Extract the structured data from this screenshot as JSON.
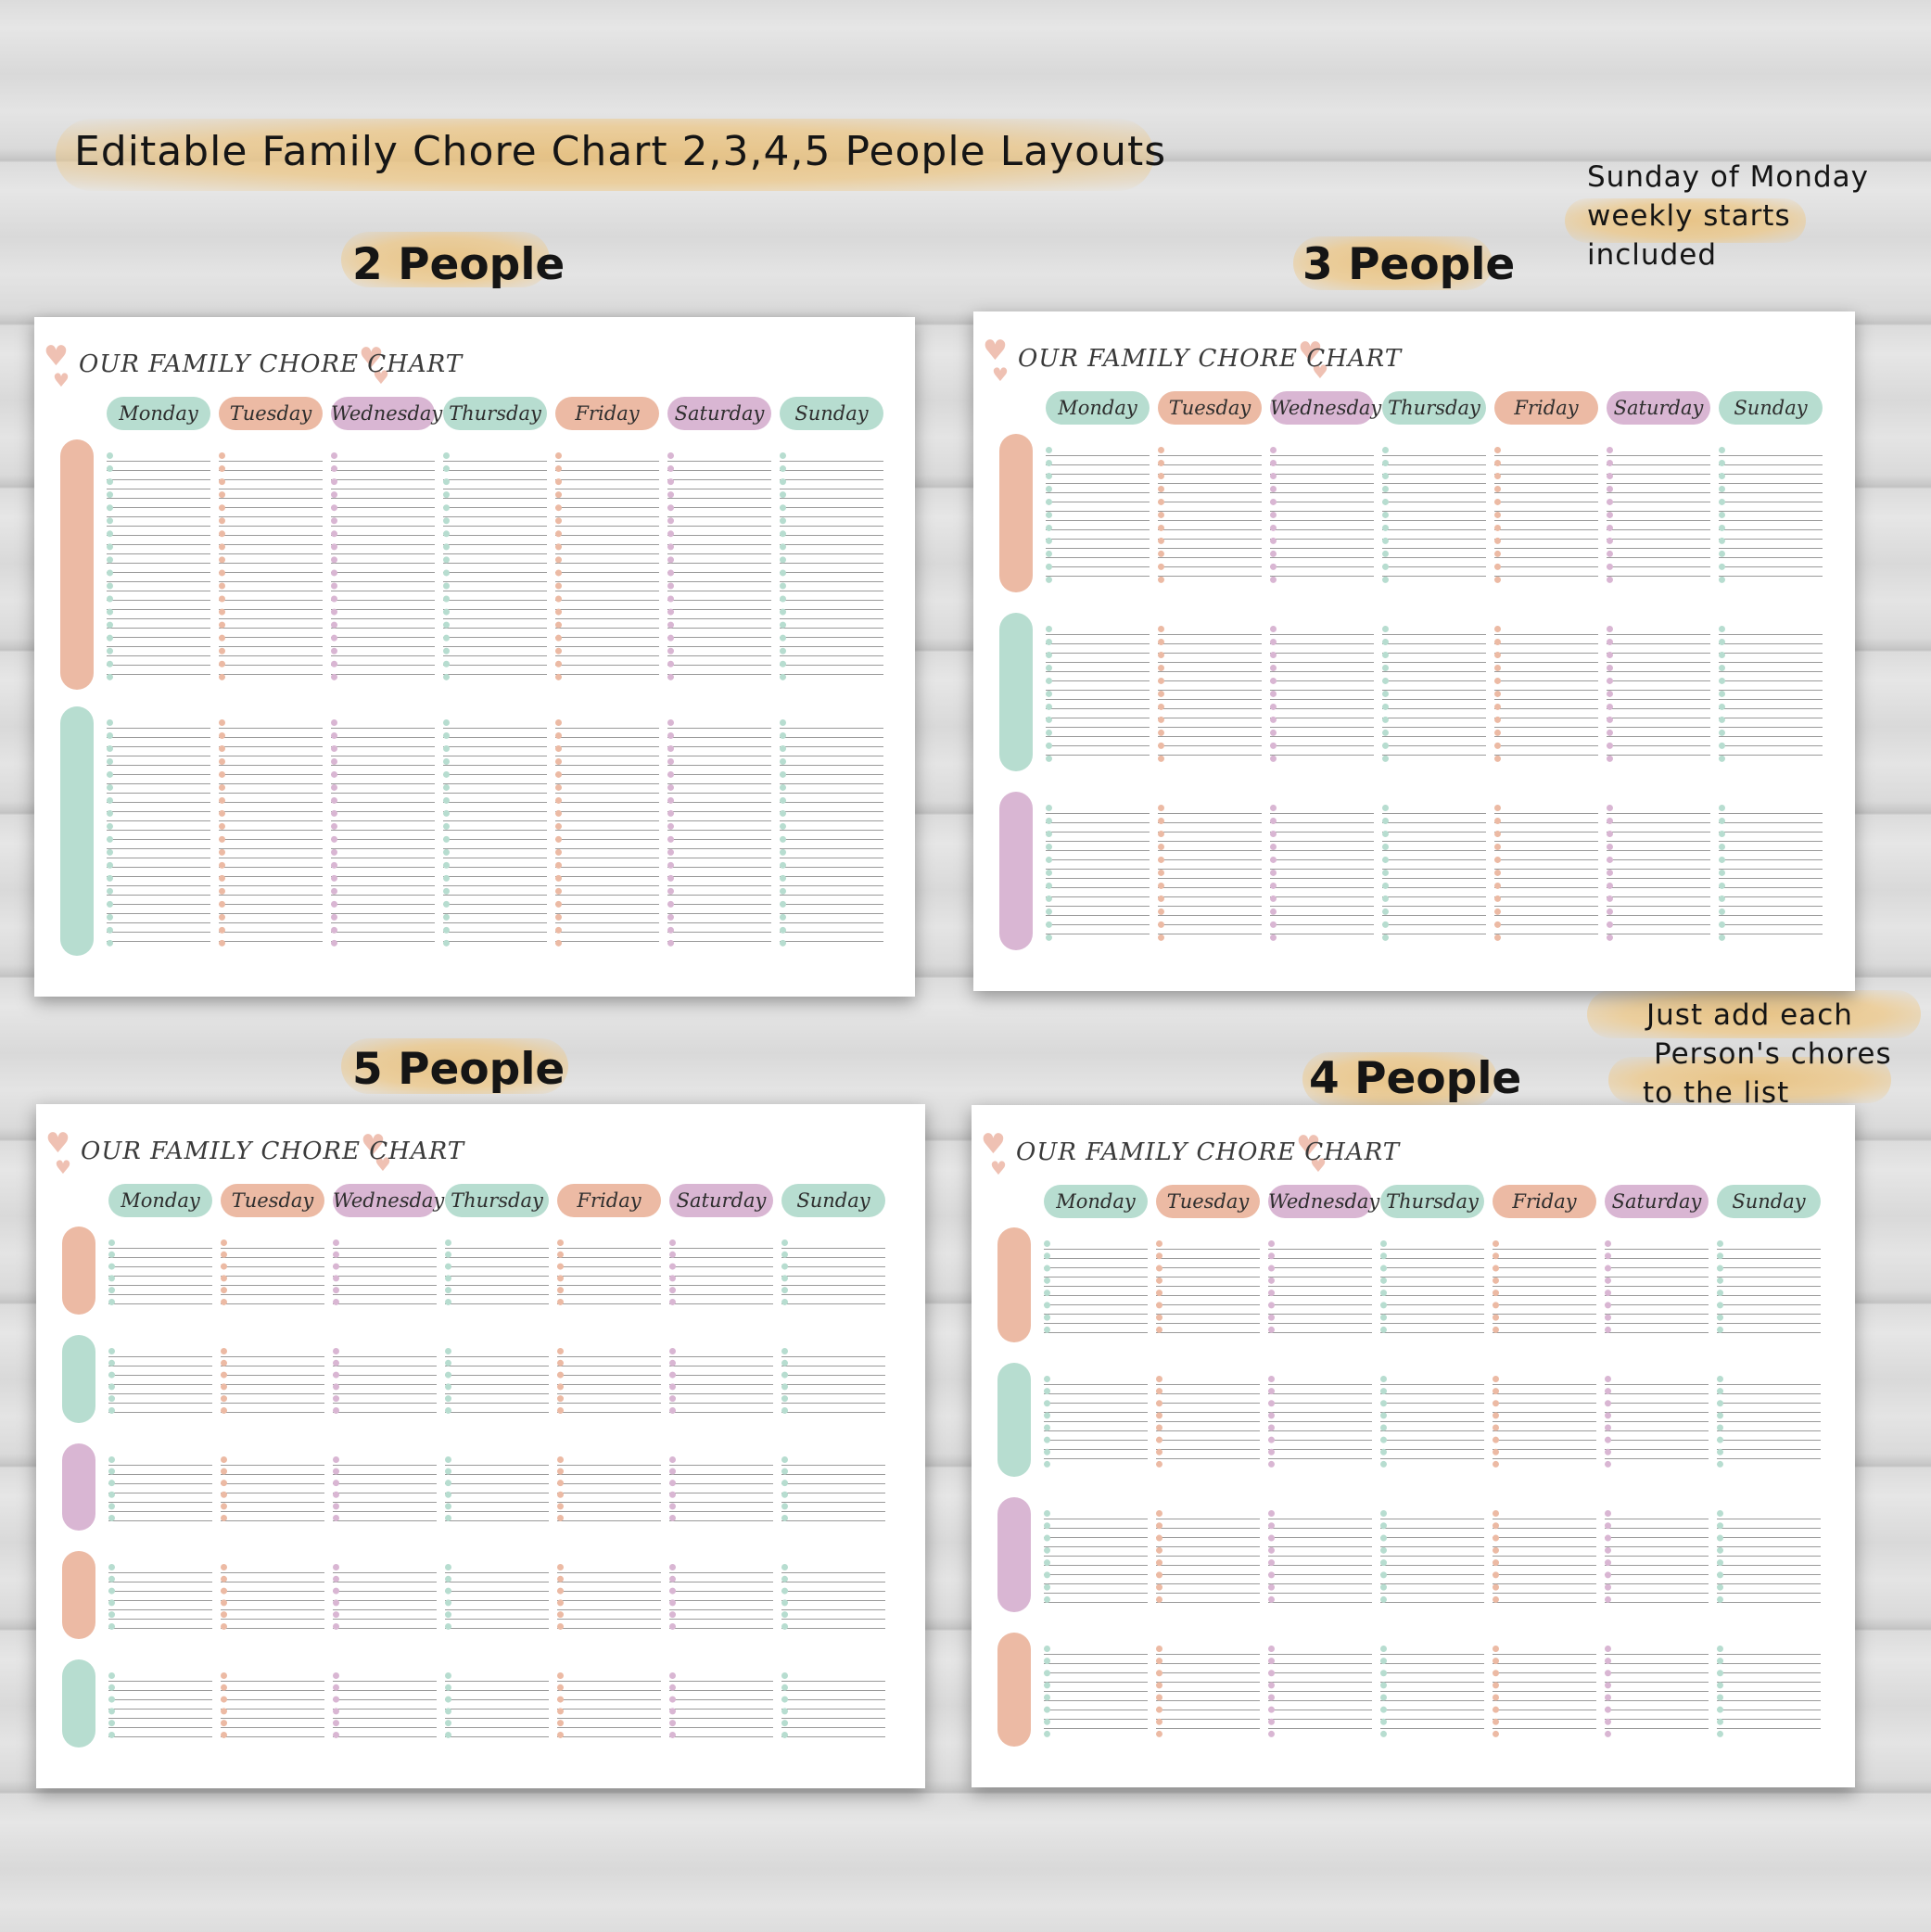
{
  "main_title": "Editable Family Chore Chart 2,3,4,5 People Layouts",
  "notes": {
    "week_start": [
      "Sunday of Monday",
      "weekly starts",
      "included"
    ],
    "add_chores": [
      "Just add each",
      "Person's chores",
      "to the list"
    ]
  },
  "layouts": [
    {
      "label": "2 People",
      "sheet_title": "OUR FAMILY CHORE CHART",
      "people": 2
    },
    {
      "label": "3 People",
      "sheet_title": "OUR FAMILY CHORE CHART",
      "people": 3
    },
    {
      "label": "5 People",
      "sheet_title": "OUR FAMILY CHORE CHART",
      "people": 5
    },
    {
      "label": "4 People",
      "sheet_title": "OUR FAMILY CHORE CHART",
      "people": 4
    }
  ],
  "days": [
    "Monday",
    "Tuesday",
    "Wednesday",
    "Thursday",
    "Friday",
    "Saturday",
    "Sunday"
  ],
  "colors": {
    "green": "#b7ddd0",
    "peach": "#ecbaa4",
    "purple": "#d9b6d3",
    "heart": "#efc1b3"
  },
  "day_colors": [
    "green",
    "peach",
    "purple",
    "green",
    "peach",
    "purple",
    "green"
  ],
  "person_colors": [
    "peach",
    "green",
    "purple",
    "peach",
    "green"
  ]
}
